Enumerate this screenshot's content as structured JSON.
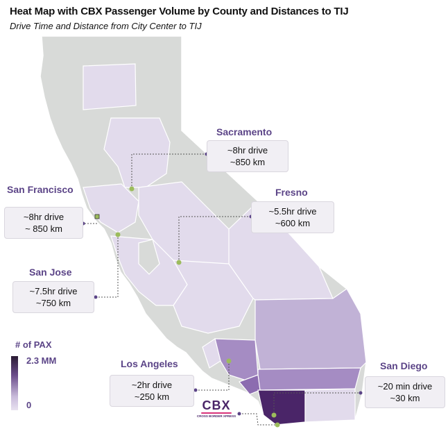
{
  "title": "Heat Map with CBX Passenger Volume by County and Distances to TIJ",
  "subtitle": "Drive Time and Distance from City Center to TIJ",
  "legend": {
    "title": "# of PAX",
    "max_label": "2.3 MM",
    "min_label": "0"
  },
  "cities": {
    "sacramento": {
      "name": "Sacramento",
      "time": "~8hr drive",
      "distance": "~850 km"
    },
    "san_francisco": {
      "name": "San Francisco",
      "time": "~8hr drive",
      "distance": "~ 850 km"
    },
    "fresno": {
      "name": "Fresno",
      "time": "~5.5hr drive",
      "distance": "~600 km"
    },
    "san_jose": {
      "name": "San Jose",
      "time": "~7.5hr drive",
      "distance": "~750 km"
    },
    "los_angeles": {
      "name": "Los Angeles",
      "time": "~2hr drive",
      "distance": "~250 km"
    },
    "san_diego": {
      "name": "San Diego",
      "time": "~20 min drive",
      "distance": "~30 km"
    }
  },
  "logo": {
    "text": "CBX",
    "tagline": "CROSS BORDER XPRESS"
  },
  "colors": {
    "no_data": "#d8dad8",
    "low": "#e2dbec",
    "mid": "#c1b2d6",
    "high": "#a58cc3",
    "higher": "#8c6cb0",
    "max": "#4a2568",
    "label": "#5b4487",
    "dot": "#9cbc5c"
  }
}
